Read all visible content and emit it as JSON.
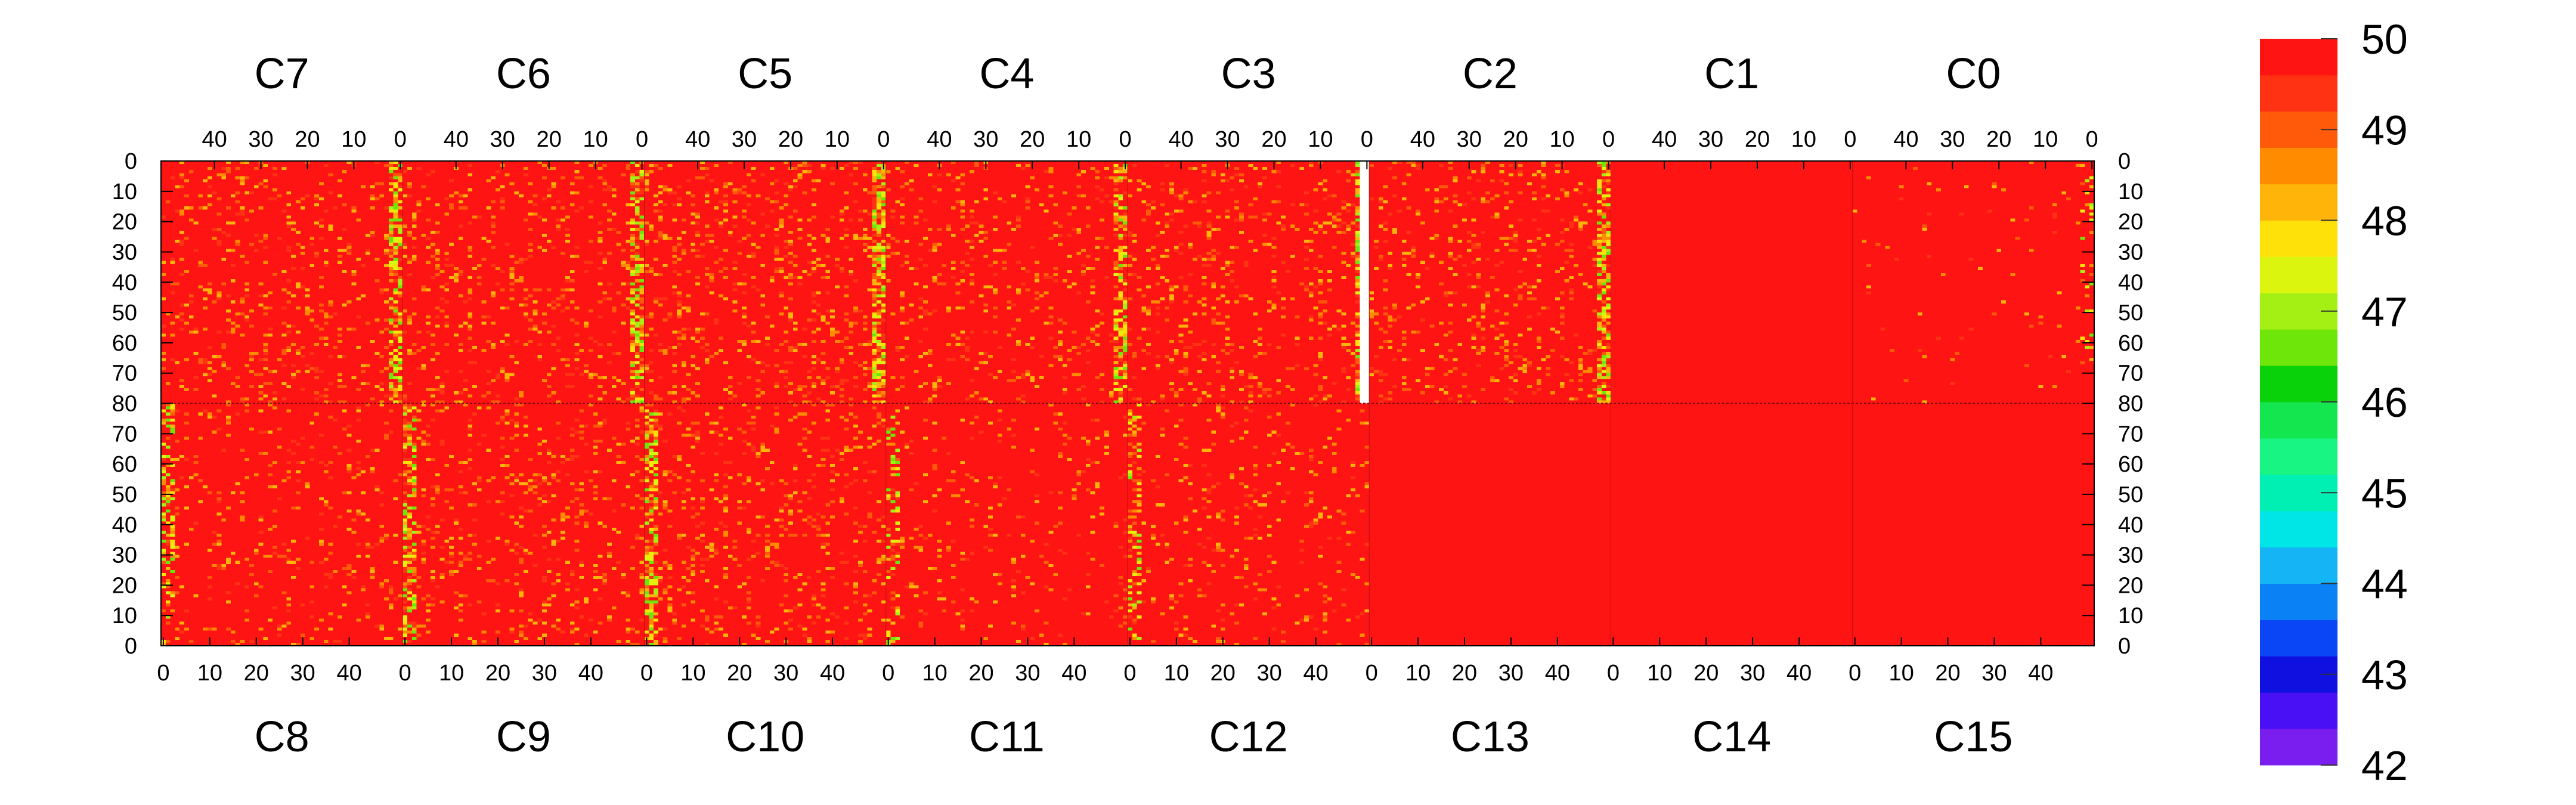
{
  "chart_data": {
    "type": "heatmap",
    "title": "",
    "top_chips": [
      "C7",
      "C6",
      "C5",
      "C4",
      "C3",
      "C2",
      "C1",
      "C0"
    ],
    "bottom_chips": [
      "C8",
      "C9",
      "C10",
      "C11",
      "C12",
      "C13",
      "C14",
      "C15"
    ],
    "columns_per_chip": 52,
    "rows_per_half": 80,
    "top_x_ticks": [
      "40",
      "30",
      "20",
      "10",
      "0"
    ],
    "top_x_tick_values": [
      40,
      30,
      20,
      10,
      0
    ],
    "bottom_x_ticks": [
      "0",
      "10",
      "20",
      "30",
      "40"
    ],
    "bottom_x_tick_values": [
      0,
      10,
      20,
      30,
      40
    ],
    "y_ticks_top_half": [
      "0",
      "10",
      "20",
      "30",
      "40",
      "50",
      "60",
      "70",
      "80"
    ],
    "y_ticks_bottom_half": [
      "70",
      "60",
      "50",
      "40",
      "30",
      "20",
      "10",
      "0"
    ],
    "y_tick_values_top_half": [
      0,
      10,
      20,
      30,
      40,
      50,
      60,
      70,
      80
    ],
    "y_tick_values_bottom_half": [
      70,
      60,
      50,
      40,
      30,
      20,
      10,
      0
    ],
    "zlim": [
      42,
      50
    ],
    "palette_labels": [
      "50",
      "49",
      "48",
      "47",
      "46",
      "45",
      "44",
      "43",
      "42"
    ],
    "palette_colors": [
      "#7a1ef0",
      "#4a10f5",
      "#1010e0",
      "#0a46f5",
      "#0a82f5",
      "#15b4f5",
      "#00e6e6",
      "#00f0b4",
      "#19f582",
      "#14e650",
      "#0ad20a",
      "#6ee60a",
      "#a5f014",
      "#dcf50f",
      "#ffe10a",
      "#ffb40a",
      "#ff8c00",
      "#ff5a0a",
      "#ff3214",
      "#ff1414"
    ],
    "dead_region": {
      "chip": "C3",
      "columns": [
        0,
        1
      ],
      "rows": [
        0,
        80
      ],
      "note": "white, no data"
    },
    "column_profile": {
      "description": "fraction of non-saturated (below 50) pixels; column index = 0 at chip edge 0",
      "hot_columns": [
        0,
        1,
        2
      ],
      "by_chip": {
        "C7": 0.12,
        "C6": 0.12,
        "C5": 0.14,
        "C4": 0.1,
        "C3": 0.12,
        "C2": 0.12,
        "C1": 0.0,
        "C0": 0.02,
        "C8": 0.08,
        "C9": 0.12,
        "C10": 0.12,
        "C11": 0.06,
        "C12": 0.07,
        "C13": 0.0,
        "C14": 0.0,
        "C15": 0.0
      }
    }
  }
}
